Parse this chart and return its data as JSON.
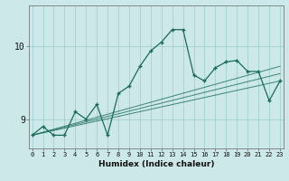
{
  "xlabel": "Humidex (Indice chaleur)",
  "bg_color": "#cce8e8",
  "grid_color": "#99cccc",
  "line_color": "#1a6b5a",
  "x_ticks": [
    0,
    1,
    2,
    3,
    4,
    5,
    6,
    7,
    8,
    9,
    10,
    11,
    12,
    13,
    14,
    15,
    16,
    17,
    18,
    19,
    20,
    21,
    22,
    23
  ],
  "y_ticks": [
    9,
    10
  ],
  "ylim": [
    8.6,
    10.55
  ],
  "xlim": [
    -0.3,
    23.3
  ],
  "main_x": [
    0,
    1,
    2,
    3,
    4,
    5,
    6,
    7,
    8,
    9,
    10,
    11,
    12,
    13,
    14,
    15,
    16,
    17,
    18,
    19,
    20,
    21,
    22,
    23
  ],
  "main_y": [
    8.78,
    8.9,
    8.78,
    8.78,
    9.1,
    9.0,
    9.2,
    8.78,
    9.35,
    9.45,
    9.72,
    9.93,
    10.05,
    10.22,
    10.22,
    9.6,
    9.52,
    9.7,
    9.78,
    9.8,
    9.65,
    9.65,
    9.25,
    9.52
  ],
  "line2_x": [
    0,
    23
  ],
  "line2_y": [
    8.78,
    9.52
  ],
  "line3_x": [
    0,
    23
  ],
  "line3_y": [
    8.78,
    9.62
  ],
  "line4_x": [
    0,
    23
  ],
  "line4_y": [
    8.78,
    9.72
  ]
}
